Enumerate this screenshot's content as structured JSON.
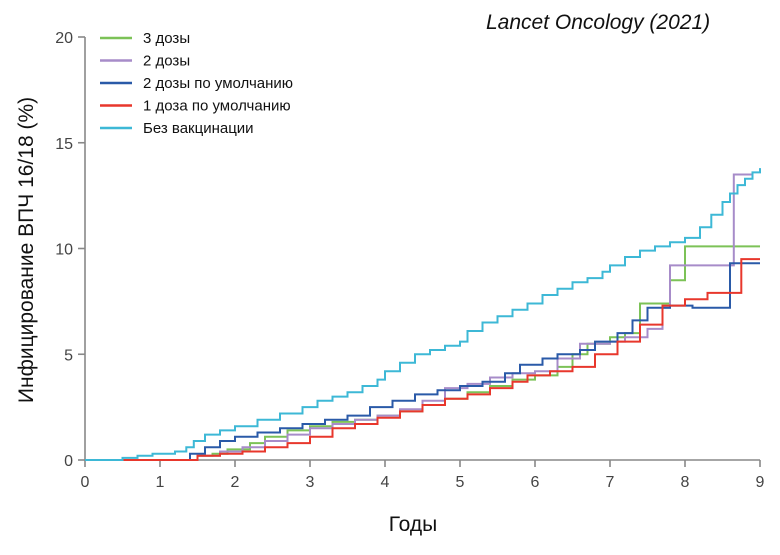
{
  "source_note": "Lancet Oncology (2021)",
  "chart_data": {
    "type": "line",
    "step": true,
    "xlabel": "Годы",
    "ylabel": "Инфицирование ВПЧ 16/18 (%)",
    "xlim": [
      0,
      9
    ],
    "ylim": [
      0,
      20
    ],
    "xticks": [
      "0",
      "1",
      "2",
      "3",
      "4",
      "5",
      "6",
      "7",
      "8",
      "9"
    ],
    "yticks": [
      "0",
      "5",
      "10",
      "15",
      "20"
    ],
    "grid": false,
    "legend_position": "top-left",
    "series": [
      {
        "name": "3 дозы",
        "color": "#7cc257",
        "points": [
          [
            0,
            0
          ],
          [
            1.3,
            0
          ],
          [
            1.5,
            0.2
          ],
          [
            1.7,
            0.3
          ],
          [
            1.9,
            0.5
          ],
          [
            2.2,
            0.8
          ],
          [
            2.4,
            1.1
          ],
          [
            2.7,
            1.4
          ],
          [
            3.0,
            1.6
          ],
          [
            3.3,
            1.8
          ],
          [
            3.6,
            1.9
          ],
          [
            3.9,
            2.1
          ],
          [
            4.2,
            2.3
          ],
          [
            4.5,
            2.6
          ],
          [
            4.8,
            2.9
          ],
          [
            5.1,
            3.2
          ],
          [
            5.4,
            3.5
          ],
          [
            5.7,
            3.8
          ],
          [
            6.0,
            4.0
          ],
          [
            6.3,
            4.4
          ],
          [
            6.5,
            5.0
          ],
          [
            6.7,
            5.5
          ],
          [
            7.0,
            5.8
          ],
          [
            7.2,
            6.0
          ],
          [
            7.4,
            7.4
          ],
          [
            7.6,
            7.4
          ],
          [
            7.8,
            8.5
          ],
          [
            8.0,
            10.1
          ],
          [
            9.0,
            10.1
          ]
        ]
      },
      {
        "name": "2 дозы",
        "color": "#a78cc9",
        "points": [
          [
            0,
            0
          ],
          [
            1.3,
            0
          ],
          [
            1.5,
            0.2
          ],
          [
            1.8,
            0.4
          ],
          [
            2.1,
            0.6
          ],
          [
            2.4,
            0.9
          ],
          [
            2.7,
            1.2
          ],
          [
            3.0,
            1.5
          ],
          [
            3.3,
            1.7
          ],
          [
            3.6,
            1.9
          ],
          [
            3.9,
            2.1
          ],
          [
            4.2,
            2.4
          ],
          [
            4.5,
            2.8
          ],
          [
            4.8,
            3.4
          ],
          [
            5.1,
            3.6
          ],
          [
            5.4,
            3.9
          ],
          [
            5.7,
            4.1
          ],
          [
            6.0,
            4.2
          ],
          [
            6.3,
            4.8
          ],
          [
            6.6,
            5.5
          ],
          [
            7.0,
            5.6
          ],
          [
            7.2,
            5.8
          ],
          [
            7.5,
            6.2
          ],
          [
            7.7,
            7.2
          ],
          [
            7.8,
            9.2
          ],
          [
            8.5,
            9.2
          ],
          [
            8.65,
            13.5
          ],
          [
            8.9,
            13.5
          ]
        ]
      },
      {
        "name": "2 дозы по умолчанию",
        "color": "#2a5aa8",
        "points": [
          [
            0,
            0
          ],
          [
            1.35,
            0
          ],
          [
            1.4,
            0.3
          ],
          [
            1.6,
            0.6
          ],
          [
            1.8,
            0.9
          ],
          [
            2.0,
            1.1
          ],
          [
            2.3,
            1.3
          ],
          [
            2.6,
            1.5
          ],
          [
            2.9,
            1.7
          ],
          [
            3.2,
            1.9
          ],
          [
            3.5,
            2.1
          ],
          [
            3.8,
            2.5
          ],
          [
            4.1,
            2.8
          ],
          [
            4.4,
            3.1
          ],
          [
            4.7,
            3.3
          ],
          [
            5.0,
            3.5
          ],
          [
            5.3,
            3.7
          ],
          [
            5.6,
            4.1
          ],
          [
            5.8,
            4.5
          ],
          [
            6.1,
            4.8
          ],
          [
            6.3,
            5.0
          ],
          [
            6.6,
            5.2
          ],
          [
            6.8,
            5.6
          ],
          [
            7.1,
            6.0
          ],
          [
            7.3,
            6.6
          ],
          [
            7.5,
            7.2
          ],
          [
            7.8,
            7.3
          ],
          [
            8.1,
            7.2
          ],
          [
            8.6,
            9.3
          ],
          [
            9.0,
            9.3
          ]
        ]
      },
      {
        "name": "1 доза по умолчанию",
        "color": "#e8372c",
        "points": [
          [
            0,
            0
          ],
          [
            1.3,
            0
          ],
          [
            1.5,
            0.2
          ],
          [
            1.8,
            0.3
          ],
          [
            2.1,
            0.4
          ],
          [
            2.4,
            0.6
          ],
          [
            2.7,
            0.8
          ],
          [
            3.0,
            1.1
          ],
          [
            3.3,
            1.5
          ],
          [
            3.6,
            1.7
          ],
          [
            3.9,
            2.0
          ],
          [
            4.2,
            2.3
          ],
          [
            4.5,
            2.6
          ],
          [
            4.8,
            2.9
          ],
          [
            5.1,
            3.1
          ],
          [
            5.4,
            3.4
          ],
          [
            5.7,
            3.7
          ],
          [
            5.9,
            4.0
          ],
          [
            6.2,
            4.2
          ],
          [
            6.5,
            4.4
          ],
          [
            6.8,
            5.0
          ],
          [
            7.1,
            5.6
          ],
          [
            7.4,
            6.4
          ],
          [
            7.7,
            7.3
          ],
          [
            8.0,
            7.6
          ],
          [
            8.3,
            7.9
          ],
          [
            8.75,
            9.5
          ],
          [
            9.0,
            9.5
          ]
        ]
      },
      {
        "name": "Без вакцинации",
        "color": "#3db8d6",
        "points": [
          [
            0,
            0
          ],
          [
            0.5,
            0.1
          ],
          [
            0.7,
            0.2
          ],
          [
            0.9,
            0.3
          ],
          [
            1.2,
            0.4
          ],
          [
            1.35,
            0.6
          ],
          [
            1.45,
            0.9
          ],
          [
            1.6,
            1.2
          ],
          [
            1.8,
            1.4
          ],
          [
            2.0,
            1.6
          ],
          [
            2.3,
            1.9
          ],
          [
            2.6,
            2.2
          ],
          [
            2.9,
            2.5
          ],
          [
            3.1,
            2.8
          ],
          [
            3.3,
            3.0
          ],
          [
            3.5,
            3.2
          ],
          [
            3.7,
            3.5
          ],
          [
            3.9,
            3.8
          ],
          [
            4.0,
            4.2
          ],
          [
            4.2,
            4.6
          ],
          [
            4.4,
            5.0
          ],
          [
            4.6,
            5.2
          ],
          [
            4.8,
            5.4
          ],
          [
            5.0,
            5.6
          ],
          [
            5.1,
            6.1
          ],
          [
            5.3,
            6.5
          ],
          [
            5.5,
            6.8
          ],
          [
            5.7,
            7.1
          ],
          [
            5.9,
            7.4
          ],
          [
            6.1,
            7.8
          ],
          [
            6.3,
            8.1
          ],
          [
            6.5,
            8.4
          ],
          [
            6.7,
            8.6
          ],
          [
            6.9,
            8.9
          ],
          [
            7.0,
            9.2
          ],
          [
            7.2,
            9.6
          ],
          [
            7.4,
            9.9
          ],
          [
            7.6,
            10.1
          ],
          [
            7.8,
            10.3
          ],
          [
            8.0,
            10.5
          ],
          [
            8.2,
            11.0
          ],
          [
            8.35,
            11.6
          ],
          [
            8.5,
            12.2
          ],
          [
            8.6,
            12.6
          ],
          [
            8.7,
            13.0
          ],
          [
            8.8,
            13.3
          ],
          [
            8.9,
            13.6
          ],
          [
            9.0,
            13.8
          ]
        ]
      }
    ]
  }
}
